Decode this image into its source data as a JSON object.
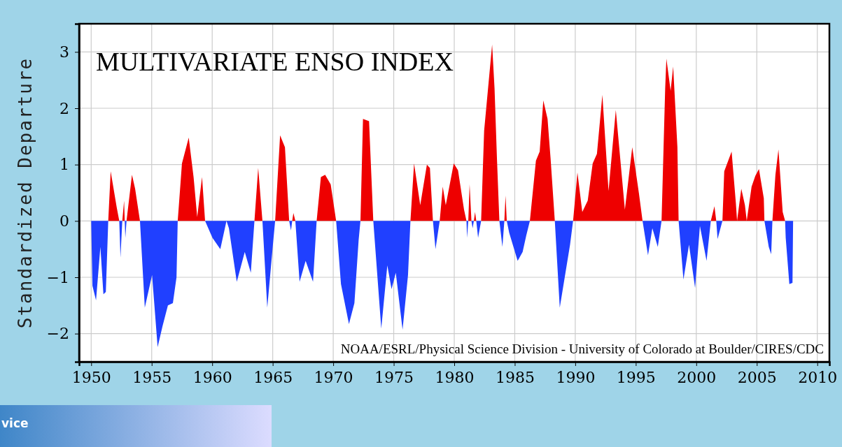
{
  "chart_data": {
    "type": "area",
    "title": "MULTIVARIATE ENSO INDEX",
    "ylabel": "Standardized Departure",
    "annotations": [
      "NOAA/ESRL/Physical Science Division - University of Colorado at Boulder/CIRES/CDC",
      "vice"
    ],
    "xlim": [
      1949,
      2011
    ],
    "xticks": [
      1950,
      1955,
      1960,
      1965,
      1970,
      1975,
      1980,
      1985,
      1990,
      1995,
      2000,
      2005,
      2010
    ],
    "ylim": [
      -2.5,
      3.5
    ],
    "yticks": [
      -2,
      -1,
      0,
      1,
      2,
      3
    ],
    "grid": true,
    "series": [
      {
        "color": "#ee0000",
        "x": [
          1950.0,
          1951.41,
          1951.61,
          1952.11,
          1952.32,
          1952.57,
          1952.72,
          1952.77,
          1952.92,
          1953.37,
          1953.63,
          1954.03,
          1957.15,
          1957.5,
          1958.06,
          1958.46,
          1958.76,
          1959.16,
          1959.41,
          1961.18,
          1963.49,
          1963.8,
          1964.15,
          1965.2,
          1965.61,
          1966.01,
          1966.36,
          1966.61,
          1966.71,
          1966.87,
          1968.63,
          1968.98,
          1969.33,
          1969.79,
          1970.24,
          1972.25,
          1972.46,
          1972.96,
          1973.31,
          1976.38,
          1976.68,
          1977.19,
          1977.74,
          1977.99,
          1978.24,
          1978.8,
          1979.05,
          1979.3,
          1979.96,
          1980.31,
          1980.81,
          1981.01,
          1981.16,
          1981.27,
          1981.42,
          1981.62,
          1981.72,
          1981.82,
          1982.22,
          1982.47,
          1983.13,
          1983.33,
          1983.53,
          1983.73,
          1984.14,
          1984.24,
          1984.34,
          1986.25,
          1986.75,
          1987.06,
          1987.36,
          1987.71,
          1987.96,
          1988.31,
          1989.82,
          1990.18,
          1990.58,
          1991.03,
          1991.44,
          1991.79,
          1992.24,
          1992.75,
          1993.35,
          1994.1,
          1994.71,
          1995.26,
          1995.56,
          1997.13,
          1997.43,
          1997.53,
          1997.88,
          1998.09,
          1998.44,
          1998.54,
          2001.2,
          2001.5,
          2001.65,
          2002.16,
          2002.31,
          2002.92,
          2003.27,
          2003.37,
          2003.72,
          2004.02,
          2004.17,
          2004.57,
          2004.88,
          2005.18,
          2005.58,
          2005.63,
          2006.29,
          2006.54,
          2006.79,
          2007.14,
          2007.34,
          2008.0
        ],
        "values": [
          0,
          0,
          0.88,
          0.24,
          0,
          0,
          0.36,
          0,
          0,
          0.82,
          0.57,
          0,
          0,
          1.02,
          1.48,
          0.78,
          0.07,
          0.78,
          0,
          0,
          0,
          0.94,
          0,
          0,
          1.52,
          1.31,
          0,
          0,
          0.14,
          0,
          0,
          0.78,
          0.82,
          0.65,
          0,
          0,
          1.81,
          1.77,
          0,
          0,
          1.02,
          0.28,
          1.0,
          0.94,
          0,
          0,
          0.61,
          0.28,
          1.02,
          0.9,
          0.2,
          0,
          0,
          0.65,
          0,
          0,
          0.16,
          0,
          0,
          1.6,
          3.13,
          2.35,
          1.1,
          0,
          0,
          0.45,
          0,
          0,
          1.07,
          1.23,
          2.14,
          1.81,
          1.11,
          0,
          0,
          0.86,
          0.16,
          0.36,
          1.02,
          1.19,
          2.24,
          0.53,
          1.97,
          0.2,
          1.31,
          0.49,
          0,
          0,
          2.35,
          2.88,
          2.31,
          2.74,
          1.31,
          0,
          0,
          0.26,
          0,
          0,
          0.88,
          1.23,
          0.32,
          0,
          0.57,
          0.28,
          0,
          0.61,
          0.8,
          0.92,
          0.4,
          0,
          0,
          0.82,
          1.27,
          0.16,
          0,
          0
        ]
      },
      {
        "color": "#2040ff",
        "x": [
          1950.0,
          1950.1,
          1950.4,
          1950.76,
          1951.01,
          1951.21,
          1951.41,
          1952.32,
          1952.42,
          1952.57,
          1952.77,
          1952.82,
          1952.92,
          1954.03,
          1954.43,
          1955.03,
          1955.49,
          1955.89,
          1956.34,
          1956.75,
          1957.05,
          1957.15,
          1959.41,
          1960.02,
          1960.67,
          1961.18,
          1961.38,
          1962.03,
          1962.69,
          1963.19,
          1963.49,
          1964.15,
          1964.55,
          1965.0,
          1965.2,
          1966.36,
          1966.51,
          1966.61,
          1966.87,
          1967.22,
          1967.72,
          1968.33,
          1968.63,
          1970.24,
          1970.64,
          1971.3,
          1971.75,
          1972.1,
          1972.25,
          1973.31,
          1973.97,
          1974.47,
          1974.82,
          1975.17,
          1975.73,
          1976.18,
          1976.38,
          1978.24,
          1978.45,
          1978.8,
          1981.01,
          1981.06,
          1981.16,
          1981.42,
          1981.52,
          1981.62,
          1981.82,
          1981.97,
          1982.22,
          1983.73,
          1983.98,
          1984.14,
          1984.34,
          1984.54,
          1985.24,
          1985.65,
          1985.95,
          1986.25,
          1988.31,
          1988.72,
          1989.57,
          1989.82,
          1995.56,
          1996.01,
          1996.37,
          1996.82,
          1997.13,
          1998.54,
          1998.94,
          1999.4,
          1999.9,
          2000.3,
          2000.85,
          2001.2,
          2001.65,
          2001.76,
          2002.16,
          2005.63,
          2005.99,
          2006.19,
          2006.29,
          2007.34,
          2007.39,
          2007.69,
          2007.95,
          2008.0
        ],
        "values": [
          0,
          -1.15,
          -1.41,
          -0.46,
          -1.3,
          -1.26,
          0,
          0,
          -0.65,
          0,
          0,
          -0.3,
          0,
          0,
          -1.54,
          -0.96,
          -2.24,
          -1.87,
          -1.5,
          -1.46,
          -1.0,
          0,
          0,
          -0.3,
          -0.5,
          0,
          -0.13,
          -1.08,
          -0.55,
          -0.92,
          0,
          0,
          -1.54,
          -0.46,
          0,
          0,
          -0.17,
          0,
          0,
          -1.08,
          -0.71,
          -1.08,
          0,
          0,
          -1.12,
          -1.83,
          -1.46,
          -0.34,
          0,
          0,
          -1.91,
          -0.79,
          -1.21,
          -0.92,
          -1.93,
          -0.96,
          0,
          0,
          -0.5,
          0,
          0,
          -0.3,
          0,
          0,
          -0.13,
          0,
          0,
          -0.3,
          0,
          0,
          -0.46,
          0,
          0,
          -0.21,
          -0.71,
          -0.55,
          -0.26,
          0,
          0,
          -1.54,
          -0.42,
          0,
          0,
          -0.61,
          -0.13,
          -0.46,
          0,
          0,
          -1.04,
          -0.42,
          -1.19,
          -0.09,
          -0.71,
          0,
          0,
          -0.32,
          0,
          0,
          -0.46,
          -0.59,
          0,
          0,
          -0.3,
          -1.12,
          -1.1,
          0
        ]
      }
    ]
  }
}
